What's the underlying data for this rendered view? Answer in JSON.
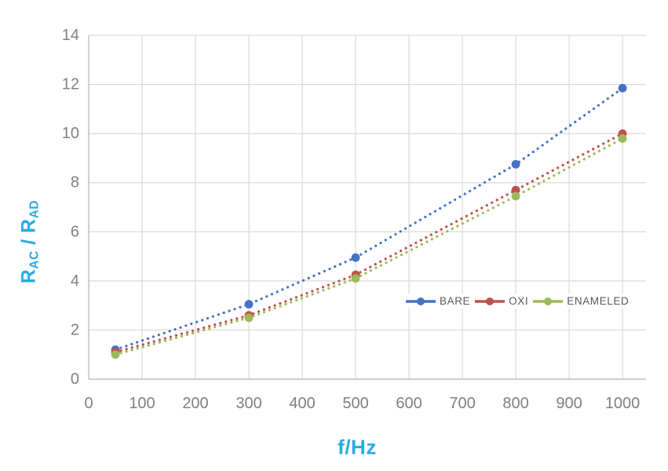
{
  "chart_data": {
    "type": "line",
    "subtype": "scatter-with-dotted-lines",
    "x": [
      50,
      300,
      500,
      800,
      1000
    ],
    "series": [
      {
        "name": "BARE",
        "color": "#4472C4",
        "values": [
          1.2,
          3.05,
          4.95,
          8.75,
          11.85
        ]
      },
      {
        "name": "OXI",
        "color": "#C0504D",
        "values": [
          1.1,
          2.6,
          4.25,
          7.7,
          10.0
        ]
      },
      {
        "name": "ENAMELED",
        "color": "#9BBB59",
        "values": [
          1.0,
          2.5,
          4.1,
          7.45,
          9.8
        ]
      }
    ],
    "title": "",
    "xlabel": "f/Hz",
    "ylabel": "R_AC / R_AD",
    "ylabel_parts": {
      "base1": "R",
      "sub1": "AC",
      "separator": " / ",
      "base2": "R",
      "sub2": "AD"
    },
    "xticks": [
      0,
      100,
      200,
      300,
      400,
      500,
      600,
      700,
      800,
      900,
      1000
    ],
    "yticks": [
      0,
      2,
      4,
      6,
      8,
      10,
      12,
      14
    ],
    "xlim": [
      0,
      1044
    ],
    "ylim": [
      0,
      14
    ],
    "grid": true,
    "legend_position": "inside-center-right",
    "marker": "circle",
    "line_style": "dotted"
  },
  "colors": {
    "axis_title": "#29ABE2",
    "tick_label": "#808080",
    "gridline": "#D9D9D9",
    "axis_line": "#BFBFBF",
    "legend_text": "#595959",
    "background": "#FFFFFF"
  }
}
